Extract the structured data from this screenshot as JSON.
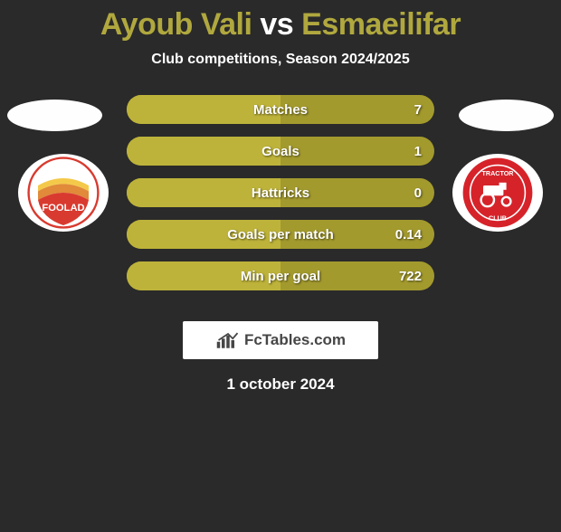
{
  "title": {
    "player1": "Ayoub Vali",
    "vs": "vs",
    "player2": "Esmaeilifar"
  },
  "subtitle": "Club competitions, Season 2024/2025",
  "colors": {
    "background": "#2a2a2a",
    "accent_light": "#beb33a",
    "accent_dark": "#a39a2e",
    "title_player": "#b0a83e",
    "text": "#ffffff",
    "branding_bg": "#ffffff",
    "branding_text": "#464646"
  },
  "clubs": {
    "left": {
      "name": "Foolad FC",
      "primary": "#d93a2f",
      "secondary": "#f4c94a"
    },
    "right": {
      "name": "Tractor Club",
      "primary": "#d6232a",
      "secondary": "#ffffff"
    }
  },
  "stats": [
    {
      "label": "Matches",
      "value": "7",
      "fill_pct": 50
    },
    {
      "label": "Goals",
      "value": "1",
      "fill_pct": 50
    },
    {
      "label": "Hattricks",
      "value": "0",
      "fill_pct": 50
    },
    {
      "label": "Goals per match",
      "value": "0.14",
      "fill_pct": 50
    },
    {
      "label": "Min per goal",
      "value": "722",
      "fill_pct": 50
    }
  ],
  "branding": "FcTables.com",
  "date": "1 october 2024"
}
